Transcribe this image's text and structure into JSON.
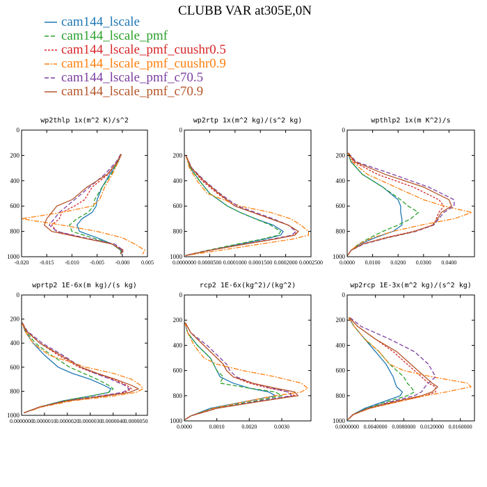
{
  "figure": {
    "title": "CLUBB VAR at305E,0N"
  },
  "legend": [
    {
      "name": "cam144_lscale",
      "color": "#1f77b4",
      "dash": ""
    },
    {
      "name": "cam144_lscale_pmf",
      "color": "#2ca02c",
      "dash": "6,3"
    },
    {
      "name": "cam144_lscale_pmf_cuushr0.5",
      "color": "#d62728",
      "dash": "3,2"
    },
    {
      "name": "cam144_lscale_pmf_cuushr0.9",
      "color": "#ff7f0e",
      "dash": "7,2,2,2"
    },
    {
      "name": "cam144_lscale_pmf_c70.5",
      "color": "#7b3fa0",
      "dash": "6,3"
    },
    {
      "name": "cam144_lscale_pmf_c70.9",
      "color": "#b5562a",
      "dash": ""
    }
  ],
  "chart_data": [
    {
      "type": "line",
      "title": "wp2thlp  1x(m^2 K)/s^2",
      "xlim": [
        -0.02,
        0.005
      ],
      "xticks": [
        "-0.020",
        "-0.015",
        "-0.010",
        "-0.005",
        "-0.000",
        "0.005"
      ],
      "ylim": [
        0,
        1000
      ],
      "yticks": [
        "0",
        "200",
        "400",
        "600",
        "800",
        "1000"
      ],
      "y": [
        190,
        250,
        350,
        450,
        550,
        600,
        650,
        700,
        750,
        800,
        850,
        900,
        950,
        980
      ],
      "series": [
        {
          "name": "cam144_lscale",
          "values": [
            -0.0002,
            -0.0008,
            -0.0025,
            -0.004,
            -0.005,
            -0.0052,
            -0.006,
            -0.008,
            -0.009,
            -0.0085,
            -0.005,
            -0.002,
            -0.0003,
            -0.0003
          ]
        },
        {
          "name": "cam144_lscale_pmf",
          "values": [
            -0.0002,
            -0.0009,
            -0.0022,
            -0.004,
            -0.0055,
            -0.0057,
            -0.0068,
            -0.009,
            -0.0105,
            -0.01,
            -0.006,
            -0.002,
            -0.0002,
            -0.0003
          ]
        },
        {
          "name": "cam144_lscale_pmf_cuushr0.5",
          "values": [
            -0.0003,
            -0.001,
            -0.0028,
            -0.006,
            -0.0075,
            -0.0095,
            -0.012,
            -0.0125,
            -0.014,
            -0.013,
            -0.008,
            -0.002,
            0.0003,
            -0.0003
          ]
        },
        {
          "name": "cam144_lscale_pmf_cuushr0.9",
          "values": [
            -0.0002,
            -0.0008,
            -0.002,
            -0.0035,
            -0.0045,
            -0.006,
            -0.012,
            -0.02,
            -0.012,
            -0.005,
            0.0,
            0.0025,
            0.0045,
            0.004
          ]
        },
        {
          "name": "cam144_lscale_pmf_c70.5",
          "values": [
            -0.0003,
            -0.0012,
            -0.0035,
            -0.0065,
            -0.0095,
            -0.011,
            -0.0125,
            -0.0135,
            -0.0145,
            -0.013,
            -0.0075,
            -0.0015,
            0.0002,
            -0.0003
          ]
        },
        {
          "name": "cam144_lscale_pmf_c70.9",
          "values": [
            -0.0002,
            -0.001,
            -0.003,
            -0.007,
            -0.01,
            -0.013,
            -0.014,
            -0.015,
            -0.0155,
            -0.014,
            -0.008,
            -0.002,
            0.0,
            -0.0003
          ]
        }
      ]
    },
    {
      "type": "line",
      "title": "wp2rtp  1x(m^2 kg)/(s^2 kg)",
      "xlim": [
        0,
        0.00025
      ],
      "xticks": [
        "0.0000000",
        "0.0000500",
        "0.0001000",
        "0.0001500",
        "0.0002000",
        "0.0002500"
      ],
      "ylim": [
        0,
        1000
      ],
      "yticks": [
        "0",
        "200",
        "400",
        "600",
        "800",
        "1000"
      ],
      "y": [
        200,
        300,
        400,
        500,
        600,
        650,
        700,
        750,
        800,
        830,
        860,
        900,
        950,
        990
      ],
      "series": [
        {
          "name": "cam144_lscale",
          "values": [
            3e-06,
            1.2e-05,
            3e-05,
            5e-05,
            8.5e-05,
            0.00011,
            0.00014,
            0.000175,
            0.000195,
            0.00019,
            0.00016,
            0.00011,
            5e-05,
            2e-06
          ]
        },
        {
          "name": "cam144_lscale_pmf",
          "values": [
            3e-06,
            1.2e-05,
            3e-05,
            5e-05,
            8.5e-05,
            0.00011,
            0.00014,
            0.00017,
            0.00019,
            0.000185,
            0.000155,
            0.000105,
            4.5e-05,
            2e-06
          ]
        },
        {
          "name": "cam144_lscale_pmf_cuushr0.5",
          "values": [
            3e-06,
            1.4e-05,
            3.5e-05,
            6.5e-05,
            0.0001,
            0.000135,
            0.00017,
            0.000205,
            0.000225,
            0.000215,
            0.00018,
            0.00012,
            5e-05,
            2e-06
          ]
        },
        {
          "name": "cam144_lscale_pmf_cuushr0.9",
          "values": [
            3e-06,
            1e-05,
            2.5e-05,
            4.5e-05,
            0.00011,
            0.00017,
            0.00021,
            0.00023,
            0.000245,
            0.000245,
            0.000215,
            0.00015,
            7e-05,
            3e-06
          ]
        },
        {
          "name": "cam144_lscale_pmf_c70.5",
          "values": [
            3e-06,
            1.5e-05,
            4e-05,
            7e-05,
            0.000105,
            0.00014,
            0.000175,
            0.000205,
            0.00022,
            0.000212,
            0.000175,
            0.000118,
            4.8e-05,
            2e-06
          ]
        },
        {
          "name": "cam144_lscale_pmf_c70.9",
          "values": [
            3e-06,
            1.4e-05,
            3.8e-05,
            6.8e-05,
            0.0001,
            0.000135,
            0.00017,
            0.000205,
            0.000225,
            0.000218,
            0.00018,
            0.00012,
            5e-05,
            2e-06
          ]
        }
      ]
    },
    {
      "type": "line",
      "title": "wpthlp2  1x(m K^2)/s",
      "xlim": [
        0,
        0.05
      ],
      "xticks": [
        "0.0000",
        "0.0100",
        "0.0200",
        "0.0300",
        "0.0400"
      ],
      "ylim": [
        0,
        1000
      ],
      "yticks": [
        "0",
        "200",
        "400",
        "600",
        "800",
        "1000"
      ],
      "y": [
        180,
        250,
        350,
        450,
        550,
        600,
        650,
        700,
        750,
        800,
        850,
        900,
        950,
        990
      ],
      "series": [
        {
          "name": "cam144_lscale",
          "values": [
            0.0003,
            0.0015,
            0.006,
            0.014,
            0.02,
            0.021,
            0.021,
            0.0215,
            0.0215,
            0.018,
            0.011,
            0.005,
            0.0015,
            0.0002
          ]
        },
        {
          "name": "cam144_lscale_pmf",
          "values": [
            0.0003,
            0.0015,
            0.006,
            0.014,
            0.021,
            0.024,
            0.028,
            0.025,
            0.02,
            0.014,
            0.009,
            0.0045,
            0.0015,
            0.0002
          ]
        },
        {
          "name": "cam144_lscale_pmf_cuushr0.5",
          "values": [
            0.0004,
            0.0025,
            0.012,
            0.026,
            0.036,
            0.038,
            0.036,
            0.035,
            0.034,
            0.026,
            0.015,
            0.006,
            0.0015,
            0.0002
          ]
        },
        {
          "name": "cam144_lscale_pmf_cuushr0.9",
          "values": [
            0.0003,
            0.002,
            0.008,
            0.019,
            0.03,
            0.038,
            0.049,
            0.042,
            0.029,
            0.018,
            0.01,
            0.0045,
            0.0015,
            0.0002
          ]
        },
        {
          "name": "cam144_lscale_pmf_c70.5",
          "values": [
            0.0005,
            0.0035,
            0.018,
            0.032,
            0.042,
            0.042,
            0.038,
            0.036,
            0.034,
            0.027,
            0.016,
            0.0065,
            0.0015,
            0.0002
          ]
        },
        {
          "name": "cam144_lscale_pmf_c70.9",
          "values": [
            0.0004,
            0.003,
            0.015,
            0.03,
            0.04,
            0.041,
            0.037,
            0.0355,
            0.0335,
            0.0265,
            0.0155,
            0.006,
            0.0015,
            0.0002
          ]
        }
      ]
    },
    {
      "type": "line",
      "title": "wprtp2  1E-6x(m kg)/(s kg)",
      "xlim": [
        0,
        5.5e-06
      ],
      "xticks": [
        "0.0000000",
        "0.0000010",
        "0.0000020",
        "0.0000030",
        "0.0000040",
        "0.0000050"
      ],
      "ylim": [
        0,
        1000
      ],
      "yticks": [
        "0",
        "200",
        "400",
        "600",
        "800",
        "1000"
      ],
      "y": [
        230,
        300,
        400,
        500,
        600,
        650,
        700,
        750,
        780,
        810,
        840,
        880,
        930,
        980
      ],
      "series": [
        {
          "name": "cam144_lscale",
          "values": [
            2e-08,
            1.5e-07,
            5e-07,
            1e-06,
            1.6e-06,
            2.2e-06,
            3e-06,
            3.6e-06,
            3.9e-06,
            3.8e-06,
            3e-06,
            1.8e-06,
            8e-07,
            1e-07
          ]
        },
        {
          "name": "cam144_lscale_pmf",
          "values": [
            2e-08,
            1.8e-07,
            6e-07,
            1.3e-06,
            2.1e-06,
            2.7e-06,
            3.3e-06,
            3.8e-06,
            4e-06,
            3.8e-06,
            3e-06,
            1.8e-06,
            8e-07,
            1e-07
          ]
        },
        {
          "name": "cam144_lscale_pmf_cuushr0.5",
          "values": [
            3e-08,
            2e-07,
            8e-07,
            1.6e-06,
            2.5e-06,
            3.2e-06,
            4e-06,
            4.6e-06,
            4.8e-06,
            4.5e-06,
            3.5e-06,
            2e-06,
            8e-07,
            1e-07
          ]
        },
        {
          "name": "cam144_lscale_pmf_cuushr0.9",
          "values": [
            2e-08,
            1.5e-07,
            5e-07,
            1.2e-06,
            2.8e-06,
            4e-06,
            4.8e-06,
            5.2e-06,
            5.3e-06,
            5e-06,
            4e-06,
            2.2e-06,
            9e-07,
            1e-07
          ]
        },
        {
          "name": "cam144_lscale_pmf_c70.5",
          "values": [
            3e-08,
            2.5e-07,
            9e-07,
            1.8e-06,
            2.6e-06,
            3.2e-06,
            3.9e-06,
            4.5e-06,
            4.7e-06,
            4.4e-06,
            3.4e-06,
            1.9e-06,
            8e-07,
            1e-07
          ]
        },
        {
          "name": "cam144_lscale_pmf_c70.9",
          "values": [
            3e-08,
            2.2e-07,
            8e-07,
            1.7e-06,
            2.6e-06,
            3.3e-06,
            4.1e-06,
            4.8e-06,
            5.1e-06,
            4.7e-06,
            3.6e-06,
            2e-06,
            8e-07,
            1e-07
          ]
        }
      ]
    },
    {
      "type": "line",
      "title": "rcp2  1E-6x(kg^2)/(kg^2)",
      "xlim": [
        0,
        0.0039
      ],
      "xticks": [
        "0.0000",
        "0.0010",
        "0.0020",
        "0.0030"
      ],
      "ylim": [
        0,
        1000
      ],
      "yticks": [
        "0",
        "200",
        "400",
        "600",
        "800",
        "1000"
      ],
      "y": [
        220,
        300,
        400,
        500,
        550,
        600,
        650,
        700,
        740,
        770,
        800,
        850,
        900,
        960,
        990
      ],
      "series": [
        {
          "name": "cam144_lscale",
          "values": [
            2e-05,
            0.0001,
            0.0004,
            0.0008,
            0.0009,
            0.001,
            0.0011,
            0.0015,
            0.002,
            0.0026,
            0.0028,
            0.0018,
            0.0008,
            0.0002,
            2e-05
          ]
        },
        {
          "name": "cam144_lscale_pmf",
          "values": [
            2e-05,
            0.0001,
            0.0004,
            0.0008,
            0.0009,
            0.001,
            0.0012,
            0.0011,
            0.002,
            0.0028,
            0.003,
            0.002,
            0.0009,
            0.0002,
            2e-05
          ]
        },
        {
          "name": "cam144_lscale_pmf_cuushr0.5",
          "values": [
            3e-05,
            0.0002,
            0.0006,
            0.001,
            0.0012,
            0.0013,
            0.0015,
            0.002,
            0.0026,
            0.0032,
            0.0034,
            0.0022,
            0.001,
            0.0002,
            2e-05
          ]
        },
        {
          "name": "cam144_lscale_pmf_cuushr0.9",
          "values": [
            2e-05,
            0.0001,
            0.0003,
            0.0006,
            0.001,
            0.0018,
            0.0028,
            0.0036,
            0.0038,
            0.0036,
            0.0028,
            0.0018,
            0.0009,
            0.0002,
            2e-05
          ]
        },
        {
          "name": "cam144_lscale_pmf_c70.5",
          "values": [
            3e-05,
            0.0002,
            0.0007,
            0.0011,
            0.0013,
            0.0014,
            0.0016,
            0.0021,
            0.0027,
            0.0032,
            0.0033,
            0.0021,
            0.001,
            0.0002,
            2e-05
          ]
        },
        {
          "name": "cam144_lscale_pmf_c70.9",
          "values": [
            3e-05,
            0.0002,
            0.0006,
            0.001,
            0.0012,
            0.0013,
            0.0015,
            0.0021,
            0.0028,
            0.0034,
            0.0035,
            0.0022,
            0.001,
            0.0002,
            2e-05
          ]
        }
      ]
    },
    {
      "type": "line",
      "title": "wp2rcp  1E-3x(m^2 kg)/(s^2 kg)",
      "xlim": [
        0,
        0.018
      ],
      "xticks": [
        "0.0000000",
        "0.0040000",
        "0.0080000",
        "0.0120000",
        "0.0160000"
      ],
      "ylim": [
        0,
        1000
      ],
      "yticks": [
        "0",
        "200",
        "400",
        "600",
        "800",
        "1000"
      ],
      "y": [
        180,
        250,
        350,
        450,
        550,
        600,
        650,
        700,
        730,
        770,
        800,
        850,
        900,
        950,
        990
      ],
      "series": [
        {
          "name": "cam144_lscale",
          "values": [
            0.0002,
            0.001,
            0.0025,
            0.004,
            0.0055,
            0.006,
            0.0065,
            0.0068,
            0.007,
            0.0078,
            0.0075,
            0.005,
            0.0025,
            0.0008,
            0.0001
          ]
        },
        {
          "name": "cam144_lscale_pmf",
          "values": [
            0.0002,
            0.001,
            0.0025,
            0.0045,
            0.006,
            0.007,
            0.008,
            0.0085,
            0.009,
            0.0095,
            0.0085,
            0.0055,
            0.0028,
            0.0008,
            0.0001
          ]
        },
        {
          "name": "cam144_lscale_pmf_cuushr0.5",
          "values": [
            0.0003,
            0.0015,
            0.004,
            0.0065,
            0.0085,
            0.0095,
            0.0105,
            0.0115,
            0.0125,
            0.0125,
            0.011,
            0.007,
            0.0032,
            0.0009,
            0.0001
          ]
        },
        {
          "name": "cam144_lscale_pmf_cuushr0.9",
          "values": [
            0.0002,
            0.001,
            0.0025,
            0.0045,
            0.006,
            0.008,
            0.012,
            0.017,
            0.0175,
            0.014,
            0.011,
            0.007,
            0.0032,
            0.0009,
            0.0001
          ]
        },
        {
          "name": "cam144_lscale_pmf_c70.5",
          "values": [
            0.0004,
            0.002,
            0.006,
            0.0095,
            0.0115,
            0.012,
            0.0125,
            0.0115,
            0.011,
            0.0105,
            0.0095,
            0.006,
            0.003,
            0.0008,
            0.0001
          ]
        },
        {
          "name": "cam144_lscale_pmf_c70.9",
          "values": [
            0.0003,
            0.0015,
            0.004,
            0.007,
            0.009,
            0.01,
            0.011,
            0.012,
            0.0128,
            0.012,
            0.0105,
            0.0065,
            0.003,
            0.0008,
            0.0001
          ]
        }
      ]
    }
  ]
}
